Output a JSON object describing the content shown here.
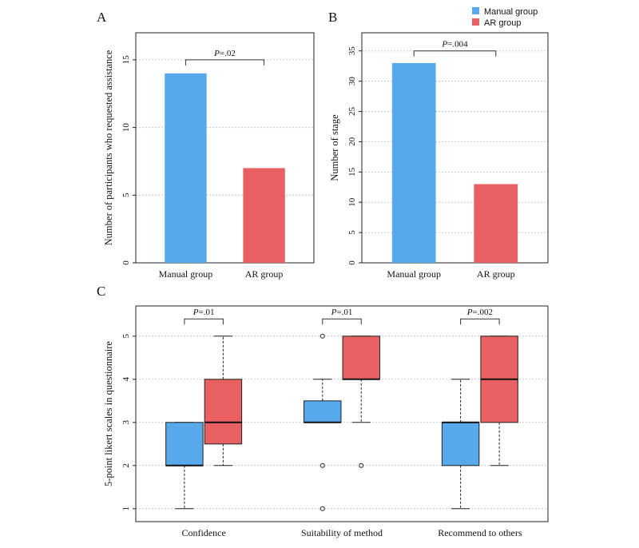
{
  "legend": {
    "items": [
      {
        "label": "Manual group",
        "color": "#58a9ec"
      },
      {
        "label": "AR group",
        "color": "#e86062"
      }
    ]
  },
  "chart_data": [
    {
      "panel": "A",
      "type": "bar",
      "categories": [
        "Manual group",
        "AR group"
      ],
      "values": [
        14,
        7
      ],
      "colors": [
        "#58a9ec",
        "#e86062"
      ],
      "ylabel": "Number of participants who requested assistance",
      "ylim": [
        0,
        17
      ],
      "yticks": [
        0,
        5,
        10,
        15
      ],
      "grid": true,
      "annotations": [
        {
          "text": "P=.02",
          "between": [
            0,
            1
          ],
          "y": 15
        }
      ]
    },
    {
      "panel": "B",
      "type": "bar",
      "categories": [
        "Manual group",
        "AR group"
      ],
      "values": [
        33,
        13
      ],
      "colors": [
        "#58a9ec",
        "#e86062"
      ],
      "ylabel": "Number of stage",
      "ylim": [
        0,
        38
      ],
      "yticks": [
        0,
        5,
        10,
        15,
        20,
        25,
        30,
        35
      ],
      "grid": true,
      "annotations": [
        {
          "text": "P=.004",
          "between": [
            0,
            1
          ],
          "y": 35
        }
      ]
    },
    {
      "panel": "C",
      "type": "box",
      "categories": [
        "Confidence",
        "Suitability of method",
        "Recommend to others"
      ],
      "ylabel": "5-point likert scales in questionnaire",
      "ylim": [
        0.7,
        5.7
      ],
      "yticks": [
        1,
        2,
        3,
        4,
        5
      ],
      "grid": true,
      "series": [
        {
          "name": "Manual group",
          "color": "#58a9ec",
          "boxes": [
            {
              "min": 1,
              "q1": 2,
              "median": 2,
              "q3": 3,
              "max": 3,
              "outliers": []
            },
            {
              "min": 3,
              "q1": 3,
              "median": 3,
              "q3": 3.5,
              "max": 4,
              "outliers": [
                5,
                2,
                1
              ]
            },
            {
              "min": 1,
              "q1": 2,
              "median": 3,
              "q3": 3,
              "max": 4,
              "outliers": []
            }
          ]
        },
        {
          "name": "AR group",
          "color": "#e86062",
          "boxes": [
            {
              "min": 2,
              "q1": 2.5,
              "median": 3,
              "q3": 4,
              "max": 5,
              "outliers": []
            },
            {
              "min": 3,
              "q1": 4,
              "median": 4,
              "q3": 5,
              "max": 5,
              "outliers": [
                2
              ]
            },
            {
              "min": 2,
              "q1": 3,
              "median": 4,
              "q3": 5,
              "max": 5,
              "outliers": []
            }
          ]
        }
      ],
      "annotations": [
        {
          "text": "P=.01",
          "category": 0,
          "y": 5.4
        },
        {
          "text": "P=.01",
          "category": 1,
          "y": 5.4
        },
        {
          "text": "P=.002",
          "category": 2,
          "y": 5.4
        }
      ]
    }
  ]
}
